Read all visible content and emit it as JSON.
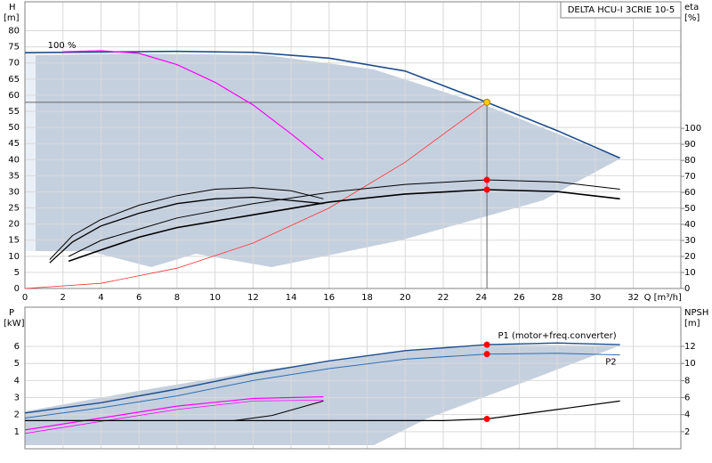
{
  "chart_data": [
    {
      "type": "line",
      "title": "DELTA HCU-I 3CRIE 10-5",
      "ylabel": "H",
      "yunit": "[m]",
      "y2label": "eta",
      "y2unit": "[%]",
      "xlabel": "Q [m³/h]",
      "annotation": "100 %",
      "xlim": [
        0,
        34.5
      ],
      "xticks": [
        0,
        2,
        4,
        6,
        8,
        10,
        12,
        14,
        16,
        18,
        20,
        22,
        24,
        26,
        28,
        30,
        32
      ],
      "ylim": [
        0,
        89
      ],
      "yticks": [
        0,
        5,
        10,
        15,
        20,
        25,
        30,
        35,
        40,
        45,
        50,
        55,
        60,
        65,
        70,
        75,
        80
      ],
      "y2lim": [
        0,
        179
      ],
      "y2ticks": [
        0,
        10,
        20,
        30,
        40,
        50,
        60,
        70,
        80,
        90,
        100
      ],
      "grid": true,
      "series": [
        {
          "color": "#1f4e8c",
          "width": 1.6,
          "x": [
            0,
            4,
            8,
            12,
            16,
            20,
            24.3,
            28,
            31.3
          ],
          "values": [
            73.2,
            73.4,
            73.6,
            73.3,
            71.5,
            67.5,
            57.8,
            49,
            40.5
          ]
        },
        {
          "color": "#ff00ff",
          "width": 1.2,
          "x": [
            2,
            4,
            6,
            8,
            10,
            12,
            14,
            15.7
          ],
          "values": [
            73.5,
            73.8,
            73,
            69.5,
            64,
            57,
            48,
            40
          ]
        },
        {
          "color": "#ff3030",
          "width": 0.8,
          "x": [
            0,
            4,
            8,
            12,
            16,
            20,
            24.3
          ],
          "values": [
            0,
            1.6,
            6.3,
            14.1,
            25,
            39.2,
            57.8
          ]
        },
        {
          "color": "#000000",
          "width": 1,
          "axis": "y2",
          "x": [
            2.3,
            4,
            6,
            8,
            12,
            16,
            20,
            24.3,
            28,
            31.3
          ],
          "values": [
            20,
            30,
            37,
            44,
            53,
            60,
            65,
            67.8,
            66.5,
            62
          ]
        },
        {
          "color": "#000000",
          "width": 1.6,
          "axis": "y2",
          "x": [
            2.3,
            4,
            6,
            8,
            12,
            16,
            20,
            24.3,
            28,
            31.3
          ],
          "values": [
            17,
            24,
            32,
            38,
            46,
            54,
            59,
            61.7,
            60.5,
            56
          ]
        },
        {
          "color": "#000000",
          "width": 1,
          "axis": "y2",
          "x": [
            1.3,
            2.5,
            4,
            6,
            8,
            10,
            12,
            14,
            15.7
          ],
          "values": [
            18,
            33,
            43,
            52,
            58,
            62,
            63,
            61,
            56
          ]
        },
        {
          "color": "#000000",
          "width": 1.3,
          "axis": "y2",
          "x": [
            1.3,
            2.5,
            4,
            6,
            8,
            10,
            12,
            14,
            15.7
          ],
          "values": [
            16,
            29,
            39,
            47,
            53,
            56,
            57,
            55,
            53
          ]
        }
      ],
      "markers": [
        {
          "x": 24.3,
          "y": 57.8,
          "color": "#ffcc00",
          "axis": "y"
        },
        {
          "x": 24.3,
          "y": 67.8,
          "color": "#ff0000",
          "axis": "y2"
        },
        {
          "x": 24.3,
          "y": 61.7,
          "color": "#ff0000",
          "axis": "y2"
        }
      ],
      "crosshair": {
        "x": 24.3,
        "y": 57.8
      }
    },
    {
      "type": "line",
      "ylabel": "P",
      "yunit": "[kW]",
      "y2label": "NPSH",
      "y2unit": "[m]",
      "xlim": [
        0,
        34.5
      ],
      "xticks": [
        0,
        2,
        4,
        6,
        8,
        10,
        12,
        14,
        16,
        18,
        20,
        22,
        24,
        26,
        28,
        30,
        32
      ],
      "show_xtick_labels": false,
      "ylim": [
        0,
        8.3
      ],
      "yticks": [
        1,
        2,
        3,
        4,
        5,
        6
      ],
      "y2lim": [
        0,
        16.6
      ],
      "y2ticks": [
        2,
        4,
        6,
        8,
        10,
        12
      ],
      "grid": true,
      "series": [
        {
          "name": "P1 (motor+freq.converter)",
          "color": "#1f4e8c",
          "width": 1.4,
          "x": [
            0,
            4,
            8,
            12,
            16,
            20,
            24.3,
            28,
            31.3
          ],
          "values": [
            2.1,
            2.7,
            3.5,
            4.4,
            5.15,
            5.75,
            6.1,
            6.2,
            6.1
          ]
        },
        {
          "name": "P2",
          "color": "#2e6fb5",
          "width": 1,
          "x": [
            0,
            4,
            8,
            12,
            16,
            20,
            24.3,
            28,
            31.3
          ],
          "values": [
            1.8,
            2.4,
            3.1,
            4,
            4.7,
            5.25,
            5.55,
            5.6,
            5.5
          ]
        },
        {
          "color": "#ff00ff",
          "width": 1.2,
          "x": [
            0,
            4,
            8,
            12,
            15.7
          ],
          "values": [
            1.1,
            1.8,
            2.5,
            2.95,
            3.05
          ]
        },
        {
          "color": "#ff00ff",
          "width": 0.8,
          "x": [
            0,
            4,
            8,
            12,
            15.7
          ],
          "values": [
            0.9,
            1.6,
            2.3,
            2.8,
            2.85
          ]
        },
        {
          "color": "#000000",
          "width": 1.2,
          "axis": "y2",
          "x": [
            0,
            22,
            24.3,
            28,
            31.3
          ],
          "values": [
            3.3,
            3.3,
            3.5,
            4.6,
            5.6
          ]
        },
        {
          "color": "#000000",
          "width": 1,
          "axis": "y2",
          "x": [
            11,
            13,
            15.7
          ],
          "values": [
            3.3,
            3.9,
            5.6
          ]
        }
      ],
      "markers": [
        {
          "x": 24.3,
          "y": 6.1,
          "color": "#ff0000",
          "axis": "y"
        },
        {
          "x": 24.3,
          "y": 5.55,
          "color": "#ff0000",
          "axis": "y"
        },
        {
          "x": 24.3,
          "y": 3.5,
          "color": "#ff0000",
          "axis": "y2"
        }
      ]
    }
  ]
}
